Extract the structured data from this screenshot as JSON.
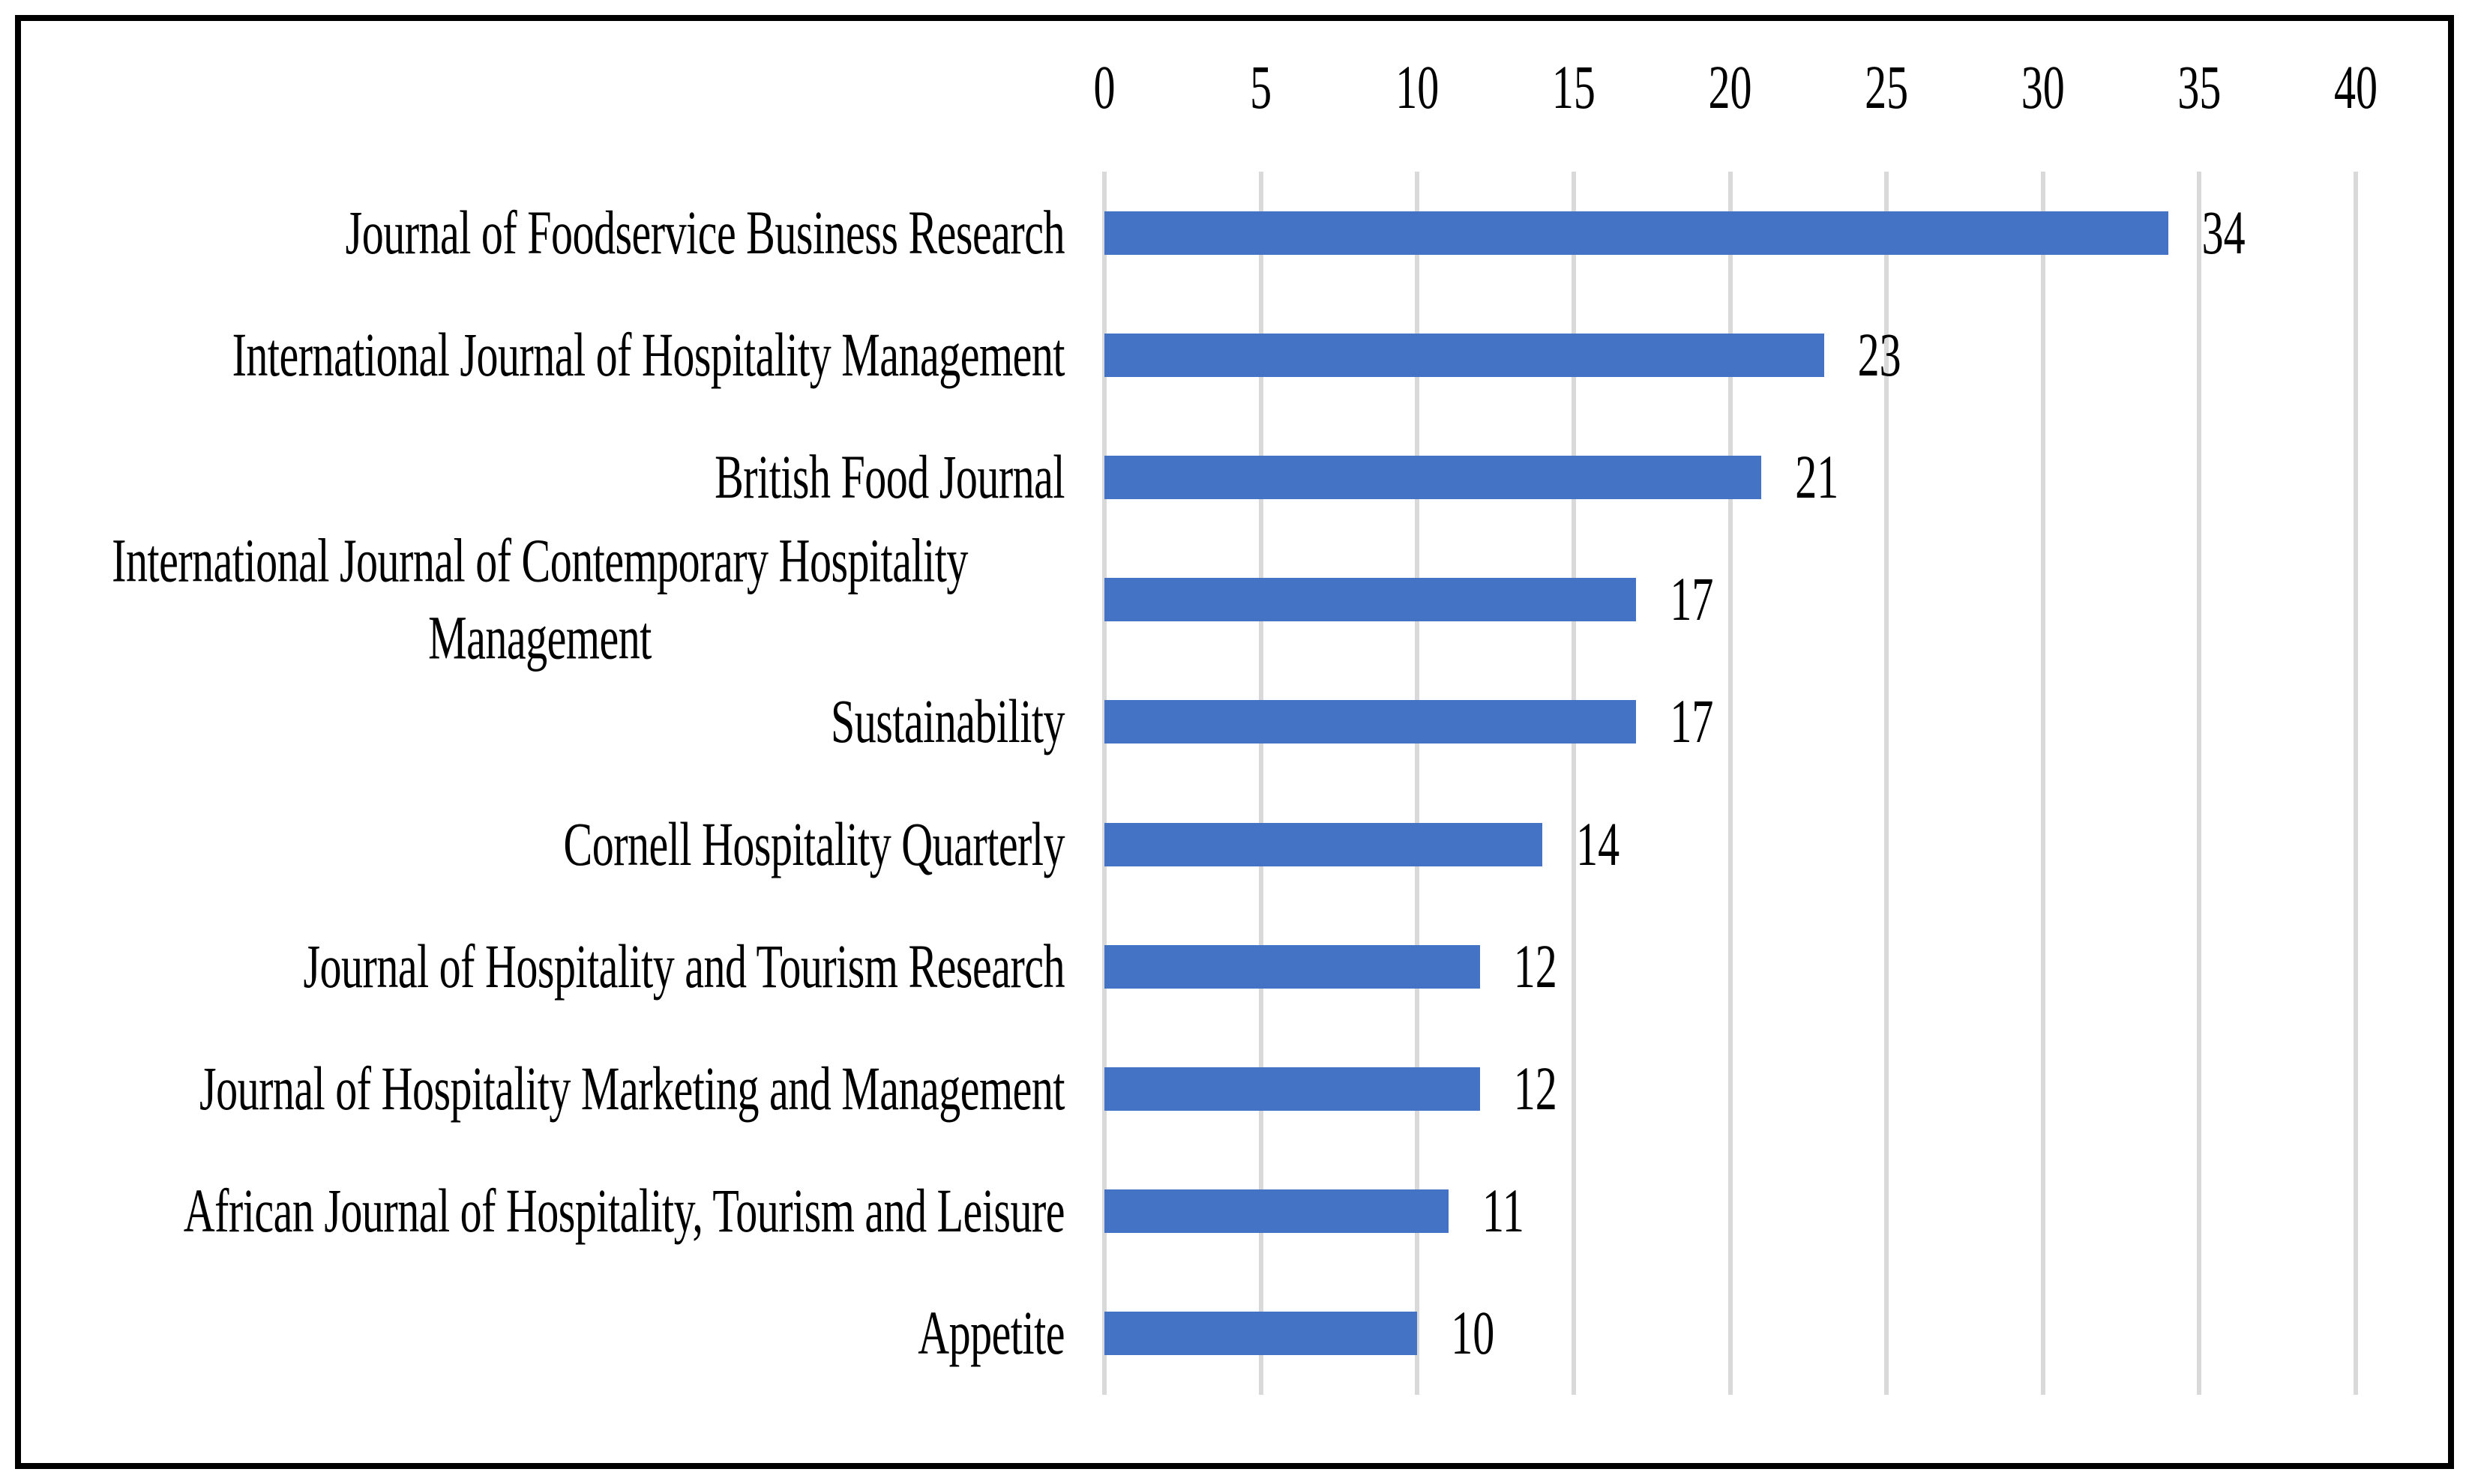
{
  "chart_data": {
    "type": "bar",
    "orientation": "horizontal",
    "title": "",
    "xlabel": "",
    "ylabel": "",
    "legend": "none",
    "categories": [
      "Journal of Foodservice Business Research",
      "International Journal of Hospitality Management",
      "British Food Journal",
      "International Journal of Contemporary Hospitality Management",
      "Sustainability",
      "Cornell Hospitality Quarterly",
      "Journal of Hospitality and Tourism Research",
      "Journal of Hospitality Marketing and Management",
      "African Journal of Hospitality, Tourism and Leisure",
      "Appetite"
    ],
    "values": [
      34,
      23,
      21,
      17,
      17,
      14,
      12,
      12,
      11,
      10
    ],
    "data_labels_shown": true,
    "x_axis": {
      "position": "top",
      "min": 0,
      "max": 40,
      "ticks": [
        0,
        5,
        10,
        15,
        20,
        25,
        30,
        35,
        40
      ]
    },
    "grid": {
      "vertical": true,
      "horizontal": false
    },
    "colors": {
      "bar": "#4472C4",
      "gridline": "#D9D9D9",
      "text": "#000000",
      "frame_border": "#000000",
      "background": "#FFFFFF"
    }
  }
}
